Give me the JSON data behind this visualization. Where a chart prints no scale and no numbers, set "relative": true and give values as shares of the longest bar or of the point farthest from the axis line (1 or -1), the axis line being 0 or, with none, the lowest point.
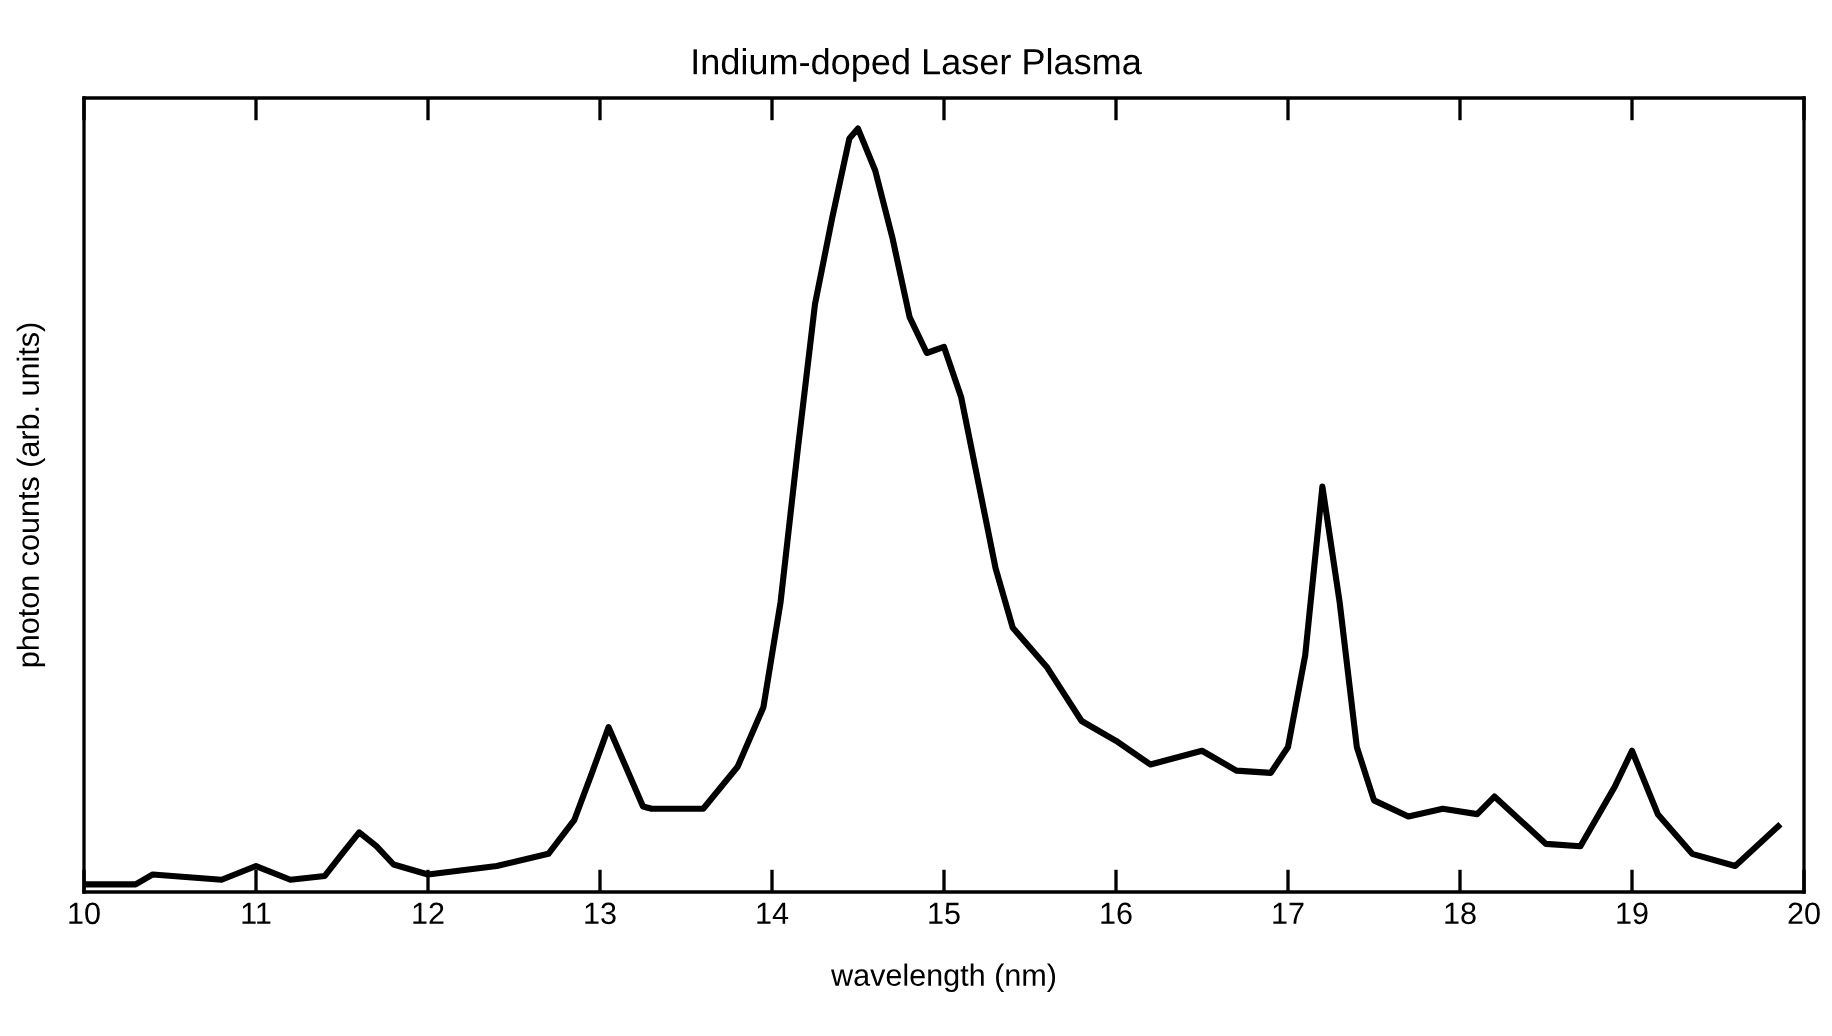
{
  "chart_data": {
    "type": "line",
    "title": "Indium-doped Laser Plasma",
    "xlabel": "wavelength (nm)",
    "ylabel": "photon counts (arb. units)",
    "relative": true,
    "xlim": [
      10,
      20
    ],
    "xticks": [
      10,
      11,
      12,
      13,
      14,
      15,
      16,
      17,
      18,
      19,
      20
    ],
    "grid": false,
    "legend": false,
    "marker": "none",
    "line_style": "solid",
    "series": [
      {
        "color": "#000000",
        "x": [
          10.0,
          10.3,
          10.4,
          10.8,
          11.0,
          11.2,
          11.4,
          11.5,
          11.6,
          11.7,
          11.8,
          12.0,
          12.4,
          12.7,
          12.85,
          12.95,
          13.05,
          13.15,
          13.25,
          13.3,
          13.6,
          13.8,
          13.95,
          14.05,
          14.15,
          14.25,
          14.35,
          14.45,
          14.5,
          14.6,
          14.7,
          14.8,
          14.9,
          15.0,
          15.1,
          15.2,
          15.3,
          15.4,
          15.6,
          15.8,
          16.0,
          16.2,
          16.5,
          16.7,
          16.9,
          17.0,
          17.1,
          17.2,
          17.3,
          17.4,
          17.5,
          17.7,
          17.9,
          18.1,
          18.2,
          18.5,
          18.7,
          18.9,
          19.0,
          19.15,
          19.35,
          19.6,
          19.85
        ],
        "values": [
          0.01,
          0.01,
          0.023,
          0.016,
          0.034,
          0.016,
          0.021,
          0.05,
          0.078,
          0.06,
          0.036,
          0.023,
          0.034,
          0.05,
          0.094,
          0.154,
          0.216,
          0.164,
          0.112,
          0.109,
          0.109,
          0.164,
          0.242,
          0.38,
          0.58,
          0.77,
          0.883,
          0.987,
          1,
          0.945,
          0.857,
          0.753,
          0.706,
          0.714,
          0.648,
          0.536,
          0.424,
          0.346,
          0.294,
          0.224,
          0.198,
          0.167,
          0.185,
          0.159,
          0.156,
          0.19,
          0.31,
          0.531,
          0.38,
          0.19,
          0.12,
          0.099,
          0.109,
          0.102,
          0.125,
          0.063,
          0.06,
          0.138,
          0.185,
          0.102,
          0.05,
          0.034,
          0.086
        ]
      }
    ]
  }
}
